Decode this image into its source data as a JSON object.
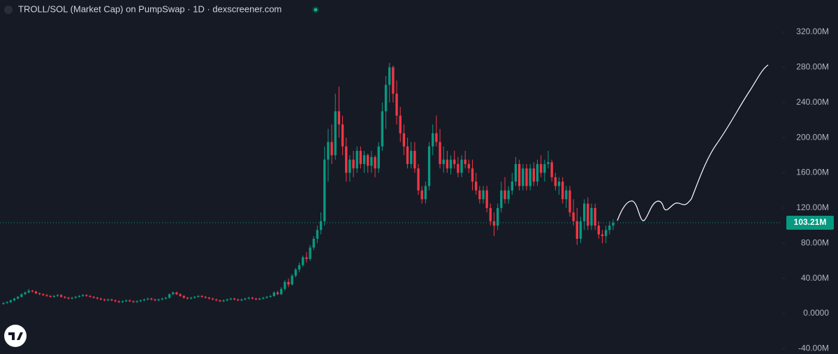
{
  "chart_data": {
    "type": "candlestick",
    "title": "TROLL/SOL (Market Cap) on PumpSwap · 1D · dexscreener.com",
    "up_color": "#089981",
    "down_color": "#f23645",
    "ylim": [
      -46,
      356.5
    ],
    "yticks": [
      {
        "value": -40,
        "label": "-40.00M"
      },
      {
        "value": 0,
        "label": "0.0000"
      },
      {
        "value": 40,
        "label": "40.00M"
      },
      {
        "value": 80,
        "label": "80.00M"
      },
      {
        "value": 120,
        "label": "120.00M"
      },
      {
        "value": 160,
        "label": "160.00M"
      },
      {
        "value": 200,
        "label": "200.00M"
      },
      {
        "value": 240,
        "label": "240.00M"
      },
      {
        "value": 280,
        "label": "280.00M"
      },
      {
        "value": 320,
        "label": "320.00M"
      }
    ],
    "last_value": 103.21,
    "last_value_label": "103.21M",
    "series": [
      {
        "values": [
          [
            11,
            13,
            10,
            12
          ],
          [
            12,
            14,
            11,
            13
          ],
          [
            13,
            16,
            12,
            15
          ],
          [
            15,
            18,
            14,
            17
          ],
          [
            17,
            20,
            16,
            19
          ],
          [
            19,
            23,
            18,
            22
          ],
          [
            22,
            25,
            21,
            24
          ],
          [
            24,
            28,
            23,
            26
          ],
          [
            26,
            27,
            24,
            25
          ],
          [
            25,
            26,
            22,
            23
          ],
          [
            23,
            24,
            21,
            22
          ],
          [
            22,
            23,
            20,
            21
          ],
          [
            21,
            22,
            19,
            20
          ],
          [
            20,
            21,
            18,
            19
          ],
          [
            19,
            21,
            18,
            20
          ],
          [
            20,
            22,
            19,
            21
          ],
          [
            21,
            22,
            18,
            19
          ],
          [
            19,
            20,
            17,
            18
          ],
          [
            18,
            19,
            16,
            17
          ],
          [
            17,
            19,
            16,
            18
          ],
          [
            18,
            20,
            17,
            19
          ],
          [
            19,
            21,
            18,
            20
          ],
          [
            20,
            22,
            19,
            21
          ],
          [
            21,
            22,
            19,
            20
          ],
          [
            20,
            21,
            18,
            19
          ],
          [
            19,
            20,
            17,
            18
          ],
          [
            18,
            19,
            16,
            17
          ],
          [
            17,
            18,
            15,
            16
          ],
          [
            16,
            17,
            14,
            15
          ],
          [
            15,
            17,
            14,
            16
          ],
          [
            16,
            17,
            14,
            15
          ],
          [
            15,
            16,
            13,
            14
          ],
          [
            14,
            15,
            12,
            13
          ],
          [
            13,
            15,
            12,
            14
          ],
          [
            14,
            16,
            13,
            15
          ],
          [
            15,
            16,
            13,
            14
          ],
          [
            14,
            15,
            12,
            13
          ],
          [
            13,
            15,
            12,
            14
          ],
          [
            14,
            16,
            13,
            15
          ],
          [
            15,
            17,
            14,
            16
          ],
          [
            16,
            18,
            15,
            17
          ],
          [
            17,
            18,
            15,
            16
          ],
          [
            16,
            17,
            14,
            15
          ],
          [
            15,
            17,
            14,
            16
          ],
          [
            16,
            18,
            15,
            17
          ],
          [
            17,
            19,
            16,
            18
          ],
          [
            18,
            23,
            17,
            22
          ],
          [
            22,
            25,
            21,
            24
          ],
          [
            24,
            25,
            21,
            22
          ],
          [
            22,
            23,
            19,
            20
          ],
          [
            20,
            21,
            17,
            18
          ],
          [
            18,
            19,
            16,
            17
          ],
          [
            17,
            19,
            16,
            18
          ],
          [
            18,
            20,
            17,
            19
          ],
          [
            19,
            21,
            18,
            20
          ],
          [
            20,
            21,
            18,
            19
          ],
          [
            19,
            20,
            17,
            18
          ],
          [
            18,
            19,
            16,
            17
          ],
          [
            17,
            18,
            15,
            16
          ],
          [
            16,
            17,
            14,
            15
          ],
          [
            15,
            16,
            13,
            14
          ],
          [
            14,
            16,
            13,
            15
          ],
          [
            15,
            17,
            14,
            16
          ],
          [
            16,
            18,
            15,
            17
          ],
          [
            17,
            18,
            15,
            16
          ],
          [
            16,
            17,
            14,
            15
          ],
          [
            15,
            17,
            14,
            16
          ],
          [
            16,
            18,
            15,
            17
          ],
          [
            17,
            19,
            16,
            18
          ],
          [
            18,
            19,
            16,
            17
          ],
          [
            17,
            18,
            15,
            16
          ],
          [
            16,
            18,
            15,
            17
          ],
          [
            17,
            19,
            16,
            18
          ],
          [
            18,
            20,
            17,
            19
          ],
          [
            19,
            21,
            18,
            20
          ],
          [
            20,
            25,
            19,
            24
          ],
          [
            24,
            26,
            21,
            22
          ],
          [
            22,
            30,
            21,
            28
          ],
          [
            28,
            38,
            26,
            36
          ],
          [
            36,
            40,
            30,
            33
          ],
          [
            33,
            45,
            32,
            43
          ],
          [
            43,
            52,
            41,
            50
          ],
          [
            50,
            58,
            47,
            55
          ],
          [
            55,
            66,
            53,
            64
          ],
          [
            64,
            70,
            58,
            62
          ],
          [
            62,
            78,
            60,
            75
          ],
          [
            75,
            88,
            72,
            85
          ],
          [
            85,
            100,
            80,
            95
          ],
          [
            95,
            115,
            90,
            105
          ],
          [
            105,
            190,
            100,
            175
          ],
          [
            175,
            210,
            150,
            195
          ],
          [
            195,
            215,
            170,
            180
          ],
          [
            180,
            250,
            175,
            230
          ],
          [
            230,
            258,
            200,
            215
          ],
          [
            215,
            225,
            180,
            190
          ],
          [
            190,
            200,
            150,
            160
          ],
          [
            160,
            180,
            150,
            175
          ],
          [
            175,
            185,
            155,
            165
          ],
          [
            165,
            190,
            160,
            185
          ],
          [
            185,
            190,
            165,
            170
          ],
          [
            170,
            185,
            160,
            180
          ],
          [
            180,
            182,
            160,
            168
          ],
          [
            168,
            185,
            160,
            178
          ],
          [
            178,
            180,
            155,
            165
          ],
          [
            165,
            195,
            160,
            190
          ],
          [
            190,
            240,
            185,
            230
          ],
          [
            230,
            270,
            210,
            260
          ],
          [
            260,
            285,
            240,
            280
          ],
          [
            280,
            282,
            240,
            250
          ],
          [
            250,
            265,
            215,
            225
          ],
          [
            225,
            235,
            195,
            205
          ],
          [
            205,
            215,
            180,
            190
          ],
          [
            190,
            200,
            165,
            170
          ],
          [
            170,
            195,
            165,
            185
          ],
          [
            185,
            195,
            160,
            165
          ],
          [
            165,
            170,
            135,
            140
          ],
          [
            140,
            145,
            125,
            130
          ],
          [
            130,
            150,
            125,
            145
          ],
          [
            145,
            195,
            140,
            190
          ],
          [
            190,
            215,
            180,
            205
          ],
          [
            205,
            225,
            190,
            195
          ],
          [
            195,
            210,
            165,
            170
          ],
          [
            170,
            190,
            160,
            175
          ],
          [
            175,
            185,
            160,
            165
          ],
          [
            165,
            180,
            158,
            175
          ],
          [
            175,
            185,
            165,
            170
          ],
          [
            170,
            178,
            155,
            160
          ],
          [
            160,
            180,
            155,
            175
          ],
          [
            175,
            185,
            165,
            170
          ],
          [
            170,
            175,
            160,
            165
          ],
          [
            165,
            175,
            140,
            150
          ],
          [
            150,
            160,
            135,
            140
          ],
          [
            140,
            145,
            125,
            130
          ],
          [
            130,
            145,
            125,
            140
          ],
          [
            140,
            145,
            115,
            120
          ],
          [
            120,
            125,
            100,
            105
          ],
          [
            105,
            115,
            88,
            100
          ],
          [
            100,
            125,
            95,
            120
          ],
          [
            120,
            150,
            115,
            140
          ],
          [
            140,
            155,
            125,
            130
          ],
          [
            130,
            145,
            125,
            140
          ],
          [
            140,
            160,
            135,
            150
          ],
          [
            150,
            178,
            145,
            170
          ],
          [
            170,
            175,
            140,
            145
          ],
          [
            145,
            170,
            140,
            165
          ],
          [
            165,
            170,
            140,
            145
          ],
          [
            145,
            170,
            140,
            165
          ],
          [
            165,
            172,
            145,
            150
          ],
          [
            150,
            175,
            145,
            170
          ],
          [
            170,
            180,
            155,
            160
          ],
          [
            160,
            175,
            150,
            170
          ],
          [
            170,
            185,
            165,
            172
          ],
          [
            172,
            175,
            150,
            155
          ],
          [
            155,
            160,
            140,
            145
          ],
          [
            145,
            155,
            135,
            150
          ],
          [
            150,
            155,
            125,
            130
          ],
          [
            130,
            145,
            120,
            140
          ],
          [
            140,
            145,
            110,
            115
          ],
          [
            115,
            130,
            100,
            105
          ],
          [
            105,
            120,
            78,
            85
          ],
          [
            85,
            110,
            80,
            105
          ],
          [
            105,
            130,
            95,
            125
          ],
          [
            125,
            132,
            95,
            100
          ],
          [
            100,
            125,
            95,
            120
          ],
          [
            120,
            125,
            95,
            100
          ],
          [
            100,
            105,
            85,
            90
          ],
          [
            90,
            95,
            80,
            88
          ],
          [
            88,
            100,
            80,
            95
          ],
          [
            95,
            105,
            90,
            100
          ],
          [
            100,
            107,
            95,
            103.21
          ]
        ]
      }
    ]
  }
}
